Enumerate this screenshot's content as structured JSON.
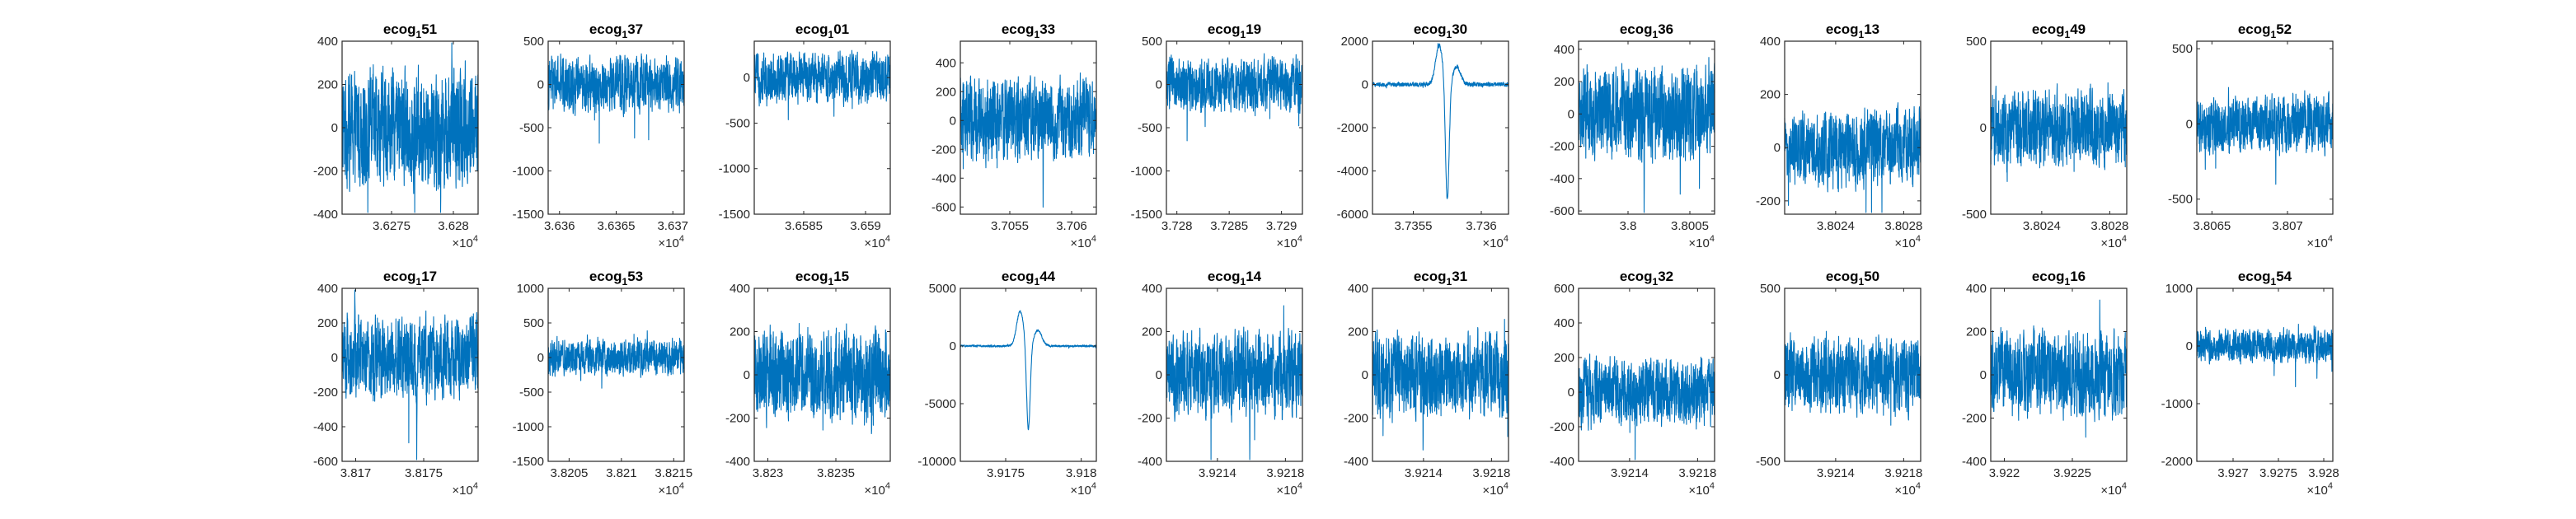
{
  "figure": {
    "rows": 2,
    "cols": 10,
    "colors": {
      "trace": "#0072BD",
      "axis": "#262626",
      "background": "#ffffff"
    },
    "exponent_label_base": "×10",
    "exponent_label_power": "4"
  },
  "chart_data": [
    {
      "type": "line",
      "title_main": "ecog",
      "title_sub": "1",
      "title_tail": "51",
      "yticks": [
        -400,
        -200,
        0,
        200,
        400
      ],
      "ylim": [
        -400,
        400
      ],
      "xticks": [
        3.6275,
        3.628
      ],
      "xtick_labels": [
        "3.6275",
        "3.628"
      ],
      "xlim": [
        3.6271,
        3.6282
      ],
      "trace_amp": 0.28,
      "events": []
    },
    {
      "type": "line",
      "title_main": "ecog",
      "title_sub": "1",
      "title_tail": "37",
      "yticks": [
        -1500,
        -1000,
        -500,
        0,
        500
      ],
      "ylim": [
        -1500,
        500
      ],
      "xticks": [
        3.636,
        3.6365,
        3.637
      ],
      "xtick_labels": [
        "3.636",
        "3.6365",
        "3.637"
      ],
      "xlim": [
        3.6359,
        3.6371
      ],
      "trace_amp": 0.13,
      "events": []
    },
    {
      "type": "line",
      "title_main": "ecog",
      "title_sub": "1",
      "title_tail": "01",
      "yticks": [
        -1500,
        -1000,
        -500,
        0
      ],
      "ylim": [
        -1500,
        400
      ],
      "xticks": [
        3.6585,
        3.659
      ],
      "xtick_labels": [
        "3.6585",
        "3.659"
      ],
      "xlim": [
        3.6581,
        3.6592
      ],
      "trace_amp": 0.12,
      "events": []
    },
    {
      "type": "line",
      "title_main": "ecog",
      "title_sub": "1",
      "title_tail": "33",
      "yticks": [
        -600,
        -400,
        -200,
        0,
        200,
        400
      ],
      "ylim": [
        -650,
        550
      ],
      "xticks": [
        3.7055,
        3.706
      ],
      "xtick_labels": [
        "3.7055",
        "3.706"
      ],
      "xlim": [
        3.7051,
        3.7062
      ],
      "trace_amp": 0.2,
      "events": []
    },
    {
      "type": "line",
      "title_main": "ecog",
      "title_sub": "1",
      "title_tail": "19",
      "yticks": [
        -1500,
        -1000,
        -500,
        0,
        500
      ],
      "ylim": [
        -1500,
        500
      ],
      "xticks": [
        3.728,
        3.7285,
        3.729
      ],
      "xtick_labels": [
        "3.728",
        "3.7285",
        "3.729"
      ],
      "xlim": [
        3.7279,
        3.7292
      ],
      "trace_amp": 0.13,
      "events": []
    },
    {
      "type": "line",
      "title_main": "ecog",
      "title_sub": "1",
      "title_tail": "30",
      "yticks": [
        -6000,
        -4000,
        -2000,
        0,
        2000
      ],
      "ylim": [
        -6000,
        2000
      ],
      "xticks": [
        3.7355,
        3.736
      ],
      "xtick_labels": [
        "3.7355",
        "3.736"
      ],
      "xlim": [
        3.7352,
        3.7362
      ],
      "trace_amp": 0.01,
      "events": [
        {
          "type": "spike",
          "at": 0.55,
          "depth": -5500,
          "peak": 1800
        }
      ]
    },
    {
      "type": "line",
      "title_main": "ecog",
      "title_sub": "1",
      "title_tail": "36",
      "yticks": [
        -600,
        -400,
        -200,
        0,
        200,
        400
      ],
      "ylim": [
        -620,
        450
      ],
      "xticks": [
        3.8,
        3.8005
      ],
      "xtick_labels": [
        "3.8",
        "3.8005"
      ],
      "xlim": [
        3.7996,
        3.8007
      ],
      "trace_amp": 0.22,
      "events": []
    },
    {
      "type": "line",
      "title_main": "ecog",
      "title_sub": "1",
      "title_tail": "13",
      "yticks": [
        -200,
        0,
        200,
        400
      ],
      "ylim": [
        -250,
        400
      ],
      "xticks": [
        3.8024,
        3.8028
      ],
      "xtick_labels": [
        "3.8024",
        "3.8028"
      ],
      "xlim": [
        3.8021,
        3.8029
      ],
      "trace_amp": 0.18,
      "events": []
    },
    {
      "type": "line",
      "title_main": "ecog",
      "title_sub": "1",
      "title_tail": "49",
      "yticks": [
        -500,
        0,
        500
      ],
      "ylim": [
        -500,
        500
      ],
      "xticks": [
        3.8024,
        3.8028
      ],
      "xtick_labels": [
        "3.8024",
        "3.8028"
      ],
      "xlim": [
        3.8021,
        3.8029
      ],
      "trace_amp": 0.18,
      "events": []
    },
    {
      "type": "line",
      "title_main": "ecog",
      "title_sub": "1",
      "title_tail": "52",
      "yticks": [
        -500,
        0,
        500
      ],
      "ylim": [
        -600,
        550
      ],
      "xticks": [
        3.8065,
        3.807
      ],
      "xtick_labels": [
        "3.8065",
        "3.807"
      ],
      "xlim": [
        3.8064,
        3.8073
      ],
      "trace_amp": 0.14,
      "events": []
    },
    {
      "type": "line",
      "title_main": "ecog",
      "title_sub": "1",
      "title_tail": "17",
      "yticks": [
        -600,
        -400,
        -200,
        0,
        200,
        400
      ],
      "ylim": [
        -600,
        400
      ],
      "xticks": [
        3.817,
        3.8175
      ],
      "xtick_labels": [
        "3.817",
        "3.8175"
      ],
      "xlim": [
        3.8169,
        3.8179
      ],
      "trace_amp": 0.2,
      "events": []
    },
    {
      "type": "line",
      "title_main": "ecog",
      "title_sub": "1",
      "title_tail": "53",
      "yticks": [
        -1500,
        -1000,
        -500,
        0,
        500,
        1000
      ],
      "ylim": [
        -1500,
        1000
      ],
      "xticks": [
        3.8205,
        3.821,
        3.8215
      ],
      "xtick_labels": [
        "3.8205",
        "3.821",
        "3.8215"
      ],
      "xlim": [
        3.8203,
        3.8216
      ],
      "trace_amp": 0.09,
      "events": []
    },
    {
      "type": "line",
      "title_main": "ecog",
      "title_sub": "1",
      "title_tail": "15",
      "yticks": [
        -400,
        -200,
        0,
        200,
        400
      ],
      "ylim": [
        -400,
        400
      ],
      "xticks": [
        3.823,
        3.8235
      ],
      "xtick_labels": [
        "3.823",
        "3.8235"
      ],
      "xlim": [
        3.8229,
        3.8239
      ],
      "trace_amp": 0.22,
      "events": []
    },
    {
      "type": "line",
      "title_main": "ecog",
      "title_sub": "1",
      "title_tail": "44",
      "yticks": [
        -10000,
        -5000,
        0,
        5000
      ],
      "ylim": [
        -10000,
        5000
      ],
      "xticks": [
        3.9175,
        3.918
      ],
      "xtick_labels": [
        "3.9175",
        "3.918"
      ],
      "xlim": [
        3.9172,
        3.9181
      ],
      "trace_amp": 0.005,
      "events": [
        {
          "type": "spike",
          "at": 0.5,
          "depth": -7500,
          "peak": 3000
        }
      ]
    },
    {
      "type": "line",
      "title_main": "ecog",
      "title_sub": "1",
      "title_tail": "14",
      "yticks": [
        -400,
        -200,
        0,
        200,
        400
      ],
      "ylim": [
        -400,
        400
      ],
      "xticks": [
        3.9214,
        3.9218
      ],
      "xtick_labels": [
        "3.9214",
        "3.9218"
      ],
      "xlim": [
        3.9211,
        3.9219
      ],
      "trace_amp": 0.2,
      "events": []
    },
    {
      "type": "line",
      "title_main": "ecog",
      "title_sub": "1",
      "title_tail": "31",
      "yticks": [
        -400,
        -200,
        0,
        200,
        400
      ],
      "ylim": [
        -400,
        400
      ],
      "xticks": [
        3.9214,
        3.9218
      ],
      "xtick_labels": [
        "3.9214",
        "3.9218"
      ],
      "xlim": [
        3.9211,
        3.9219
      ],
      "trace_amp": 0.2,
      "events": []
    },
    {
      "type": "line",
      "title_main": "ecog",
      "title_sub": "1",
      "title_tail": "32",
      "yticks": [
        -400,
        -200,
        0,
        200,
        400,
        600
      ],
      "ylim": [
        -400,
        600
      ],
      "xticks": [
        3.9214,
        3.9218
      ],
      "xtick_labels": [
        "3.9214",
        "3.9218"
      ],
      "xlim": [
        3.9211,
        3.9219
      ],
      "trace_amp": 0.16,
      "events": []
    },
    {
      "type": "line",
      "title_main": "ecog",
      "title_sub": "1",
      "title_tail": "50",
      "yticks": [
        -500,
        0,
        500
      ],
      "ylim": [
        -500,
        500
      ],
      "xticks": [
        3.9214,
        3.9218
      ],
      "xtick_labels": [
        "3.9214",
        "3.9218"
      ],
      "xlim": [
        3.9211,
        3.9219
      ],
      "trace_amp": 0.18,
      "events": []
    },
    {
      "type": "line",
      "title_main": "ecog",
      "title_sub": "1",
      "title_tail": "16",
      "yticks": [
        -400,
        -200,
        0,
        200,
        400
      ],
      "ylim": [
        -400,
        400
      ],
      "xticks": [
        3.922,
        3.9225
      ],
      "xtick_labels": [
        "3.922",
        "3.9225"
      ],
      "xlim": [
        3.9219,
        3.9229
      ],
      "trace_amp": 0.2,
      "events": []
    },
    {
      "type": "line",
      "title_main": "ecog",
      "title_sub": "1",
      "title_tail": "54",
      "yticks": [
        -2000,
        -1000,
        0,
        1000
      ],
      "ylim": [
        -2000,
        1000
      ],
      "xticks": [
        3.927,
        3.9275,
        3.928
      ],
      "xtick_labels": [
        "3.927",
        "3.9275",
        "3.928"
      ],
      "xlim": [
        3.9266,
        3.9281
      ],
      "trace_amp": 0.08,
      "events": []
    }
  ]
}
